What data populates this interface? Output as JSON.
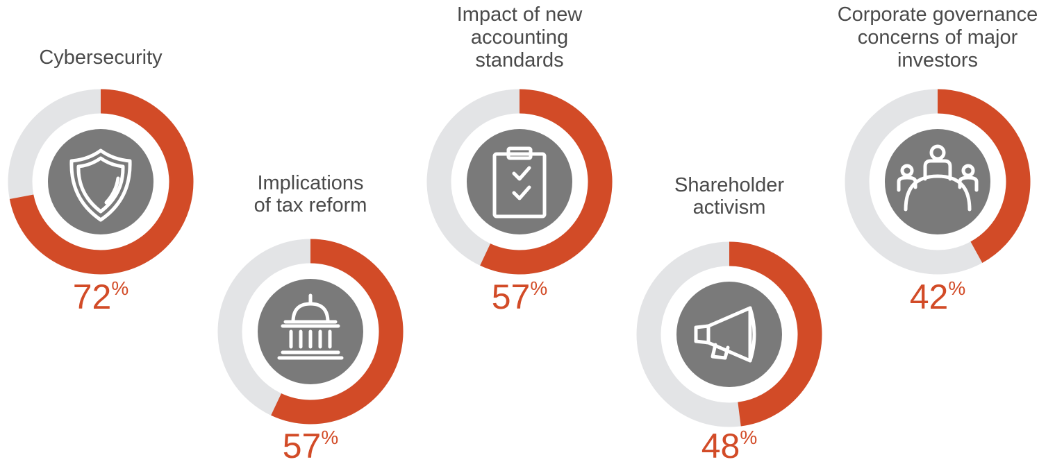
{
  "chart_data": [
    {
      "type": "donut",
      "title": [
        "Cybersecurity"
      ],
      "value": 72,
      "unit": "%",
      "color": "#d24b27",
      "track_color": "#e3e4e6"
    },
    {
      "type": "donut",
      "title": [
        "Implications",
        "of tax reform"
      ],
      "value": 57,
      "unit": "%",
      "color": "#d24b27",
      "track_color": "#e3e4e6"
    },
    {
      "type": "donut",
      "title": [
        "Impact of new",
        "accounting",
        "standards"
      ],
      "value": 57,
      "unit": "%",
      "color": "#d24b27",
      "track_color": "#e3e4e6"
    },
    {
      "type": "donut",
      "title": [
        "Shareholder",
        "activism"
      ],
      "value": 48,
      "unit": "%",
      "color": "#d24b27",
      "track_color": "#e3e4e6"
    },
    {
      "type": "donut",
      "title": [
        "Corporate governance",
        "concerns of major",
        "investors"
      ],
      "value": 42,
      "unit": "%",
      "color": "#d24b27",
      "track_color": "#e3e4e6"
    }
  ]
}
